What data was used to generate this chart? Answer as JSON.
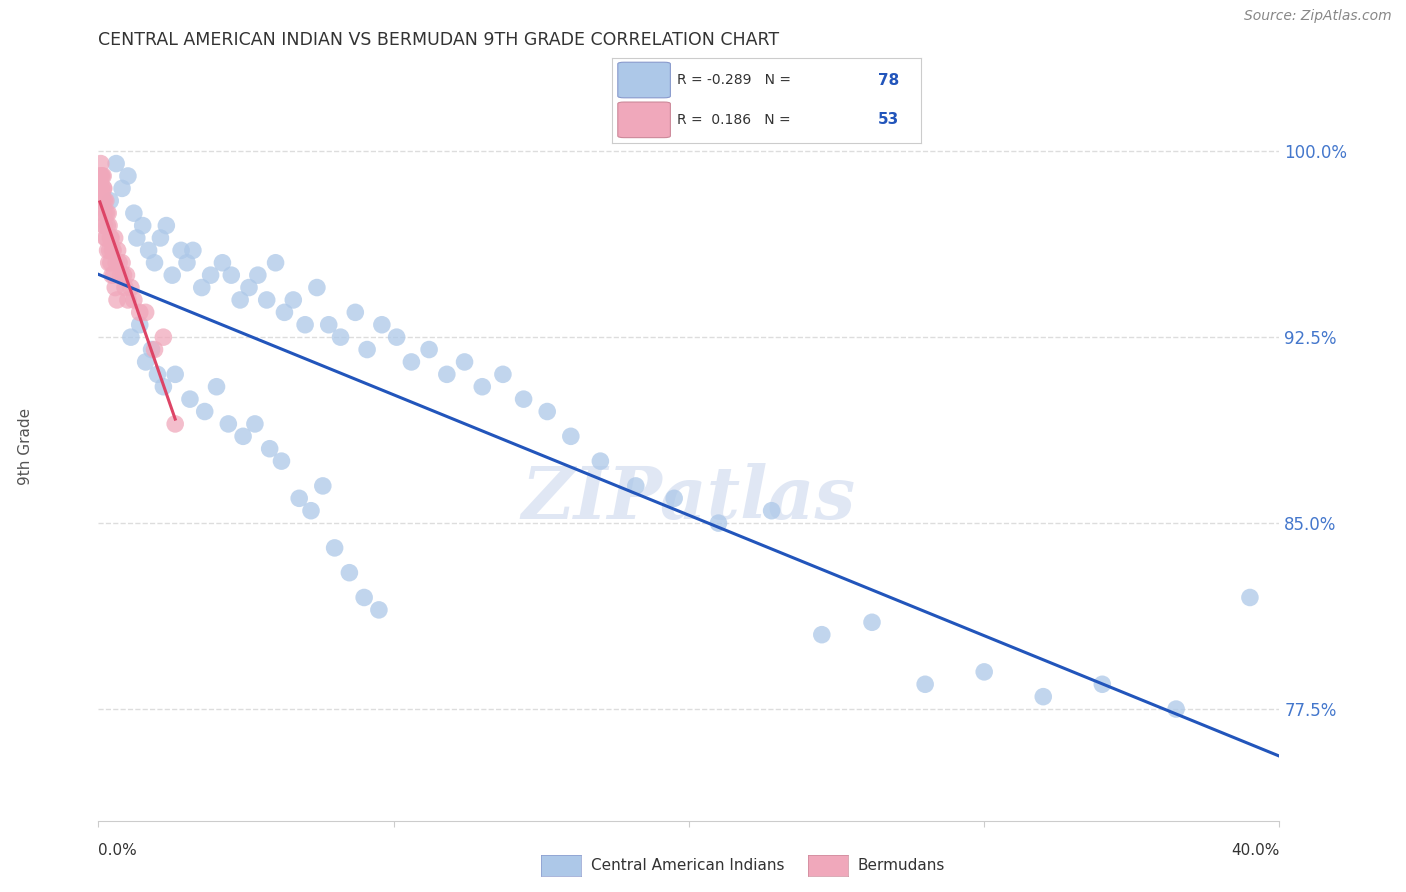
{
  "title": "CENTRAL AMERICAN INDIAN VS BERMUDAN 9TH GRADE CORRELATION CHART",
  "source": "Source: ZipAtlas.com",
  "ylabel": "9th Grade",
  "xlim": [
    0.0,
    40.0
  ],
  "ylim": [
    73.0,
    102.5
  ],
  "yticks": [
    77.5,
    85.0,
    92.5,
    100.0
  ],
  "ytick_labels": [
    "77.5%",
    "85.0%",
    "92.5%",
    "100.0%"
  ],
  "blue_R": -0.289,
  "blue_N": 78,
  "pink_R": 0.186,
  "pink_N": 53,
  "blue_color": "#adc8e8",
  "pink_color": "#f0a8bb",
  "blue_line_color": "#2255bb",
  "pink_line_color": "#dd4466",
  "legend_blue_label": "Central American Indians",
  "legend_pink_label": "Bermudans",
  "blue_x": [
    0.4,
    0.6,
    0.8,
    1.0,
    1.2,
    1.3,
    1.5,
    1.7,
    1.9,
    2.1,
    2.3,
    2.5,
    2.8,
    3.0,
    3.2,
    3.5,
    3.8,
    4.2,
    4.5,
    4.8,
    5.1,
    5.4,
    5.7,
    6.0,
    6.3,
    6.6,
    7.0,
    7.4,
    7.8,
    8.2,
    8.7,
    9.1,
    9.6,
    10.1,
    10.6,
    11.2,
    11.8,
    12.4,
    13.0,
    13.7,
    14.4,
    15.2,
    16.0,
    17.0,
    18.2,
    19.5,
    21.0,
    22.8,
    24.5,
    26.2,
    28.0,
    30.0,
    32.0,
    34.0,
    36.5,
    39.0,
    1.1,
    1.4,
    1.6,
    1.8,
    2.0,
    2.2,
    2.6,
    3.1,
    3.6,
    4.0,
    4.4,
    4.9,
    5.3,
    5.8,
    6.2,
    6.8,
    7.2,
    7.6,
    8.0,
    8.5,
    9.0,
    9.5
  ],
  "blue_y": [
    98.0,
    99.5,
    98.5,
    99.0,
    97.5,
    96.5,
    97.0,
    96.0,
    95.5,
    96.5,
    97.0,
    95.0,
    96.0,
    95.5,
    96.0,
    94.5,
    95.0,
    95.5,
    95.0,
    94.0,
    94.5,
    95.0,
    94.0,
    95.5,
    93.5,
    94.0,
    93.0,
    94.5,
    93.0,
    92.5,
    93.5,
    92.0,
    93.0,
    92.5,
    91.5,
    92.0,
    91.0,
    91.5,
    90.5,
    91.0,
    90.0,
    89.5,
    88.5,
    87.5,
    86.5,
    86.0,
    85.0,
    85.5,
    80.5,
    81.0,
    78.5,
    79.0,
    78.0,
    78.5,
    77.5,
    82.0,
    92.5,
    93.0,
    91.5,
    92.0,
    91.0,
    90.5,
    91.0,
    90.0,
    89.5,
    90.5,
    89.0,
    88.5,
    89.0,
    88.0,
    87.5,
    86.0,
    85.5,
    86.5,
    84.0,
    83.0,
    82.0,
    81.5
  ],
  "pink_x": [
    0.05,
    0.08,
    0.1,
    0.12,
    0.14,
    0.16,
    0.18,
    0.2,
    0.22,
    0.25,
    0.28,
    0.3,
    0.33,
    0.36,
    0.4,
    0.43,
    0.47,
    0.5,
    0.55,
    0.6,
    0.65,
    0.7,
    0.75,
    0.8,
    0.85,
    0.9,
    0.95,
    1.0,
    1.1,
    1.2,
    1.4,
    1.6,
    1.9,
    2.2,
    2.6,
    0.07,
    0.09,
    0.11,
    0.13,
    0.15,
    0.17,
    0.19,
    0.21,
    0.24,
    0.27,
    0.31,
    0.35,
    0.38,
    0.42,
    0.46,
    0.52,
    0.57,
    0.63
  ],
  "pink_y": [
    99.0,
    99.5,
    98.5,
    99.0,
    98.0,
    99.0,
    98.5,
    98.0,
    97.5,
    98.0,
    97.5,
    97.0,
    97.5,
    97.0,
    96.5,
    96.5,
    96.0,
    96.0,
    96.5,
    95.5,
    96.0,
    95.5,
    95.0,
    95.5,
    95.0,
    94.5,
    95.0,
    94.0,
    94.5,
    94.0,
    93.5,
    93.5,
    92.0,
    92.5,
    89.0,
    98.5,
    99.0,
    98.5,
    98.0,
    97.5,
    98.5,
    97.0,
    97.0,
    96.5,
    96.5,
    96.0,
    95.5,
    96.0,
    95.5,
    95.0,
    95.0,
    94.5,
    94.0
  ],
  "background_color": "#ffffff",
  "grid_color": "#dddddd",
  "watermark": "ZIPatlas"
}
